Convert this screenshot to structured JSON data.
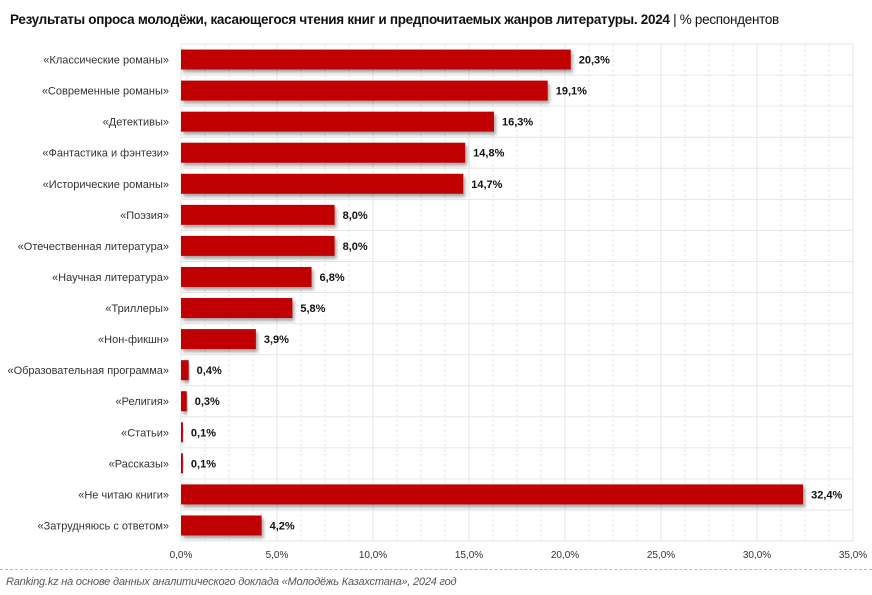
{
  "chart_data": {
    "type": "bar",
    "orientation": "horizontal",
    "title": "Результаты опроса молодёжи, касающегося чтения книг и предпочитаемых жанров литературы. 2024",
    "unit": "% респондентов",
    "categories": [
      "«Классические романы»",
      "«Современные романы»",
      "«Детективы»",
      "«Фантастика и фэнтези»",
      "«Исторические романы»",
      "«Поэзия»",
      "«Отечественная литература»",
      "«Научная литература»",
      "«Триллеры»",
      "«Нон-фикшн»",
      "«Образовательная программа»",
      "«Религия»",
      "«Статьи»",
      "«Рассказы»",
      "«Не читаю книги»",
      "«Затрудняюсь с ответом»"
    ],
    "values": [
      20.3,
      19.1,
      16.3,
      14.8,
      14.7,
      8.0,
      8.0,
      6.8,
      5.8,
      3.9,
      0.4,
      0.3,
      0.1,
      0.1,
      32.4,
      4.2
    ],
    "value_labels": [
      "20,3%",
      "19,1%",
      "16,3%",
      "14,8%",
      "14,7%",
      "8,0%",
      "8,0%",
      "6,8%",
      "5,8%",
      "3,9%",
      "0,4%",
      "0,3%",
      "0,1%",
      "0,1%",
      "32,4%",
      "4,2%"
    ],
    "xlim": [
      0,
      35
    ],
    "xticks": [
      0,
      5,
      10,
      15,
      20,
      25,
      30,
      35
    ],
    "xtick_labels": [
      "0,0%",
      "5,0%",
      "10,0%",
      "15,0%",
      "20,0%",
      "25,0%",
      "30,0%",
      "35,0%"
    ],
    "grid": true,
    "bar_color": "#c00000"
  },
  "source": "Ranking.kz на основе данных аналитического доклада «Молодёжь Казахстана», 2024 год"
}
